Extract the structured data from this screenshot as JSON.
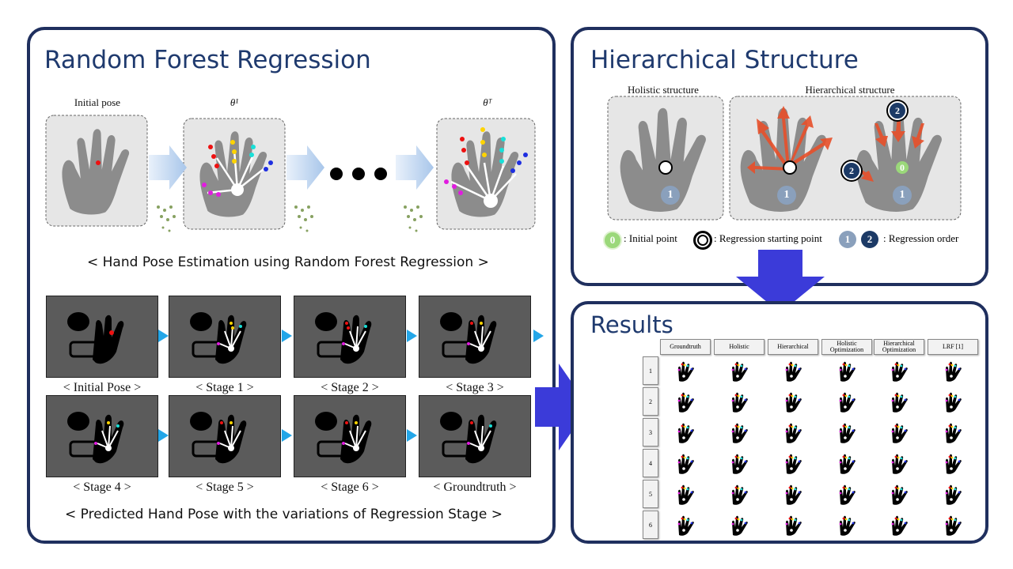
{
  "colors": {
    "border": "#1f2f5e",
    "title": "#1f3a6e",
    "arrow": "#3b3bd9",
    "smallArrow": "#23a6e8"
  },
  "left": {
    "title": "Random Forest Regression",
    "top_labels": {
      "initial": "Initial pose",
      "theta1": "θ¹",
      "thetaT": "θᵀ"
    },
    "caption1": "< Hand Pose Estimation using Random Forest Regression >",
    "caption2": "< Predicted Hand Pose with the variations of Regression Stage >",
    "stages": [
      "< Initial Pose >",
      "< Stage 1 >",
      "< Stage 2 >",
      "< Stage 3 >",
      "< Stage 4 >",
      "< Stage 5 >",
      "< Stage 6 >",
      "< Groundtruth >"
    ]
  },
  "hier": {
    "title": "Hierarchical Structure",
    "holistic_label": "Holistic structure",
    "hierarchical_label": "Hierarchical structure",
    "num0": "0",
    "num1": "1",
    "num2": "2",
    "legend_initial": ": Initial point",
    "legend_start": ": Regression starting point",
    "legend_order": ": Regression order"
  },
  "results": {
    "title": "Results",
    "columns": [
      "Groundtruth",
      "Holistic",
      "Hierarchical",
      "Holistic Optimization",
      "Hierarchical Optimization",
      "LRF [1]"
    ],
    "rows": [
      "1",
      "2",
      "3",
      "4",
      "5",
      "6"
    ]
  }
}
